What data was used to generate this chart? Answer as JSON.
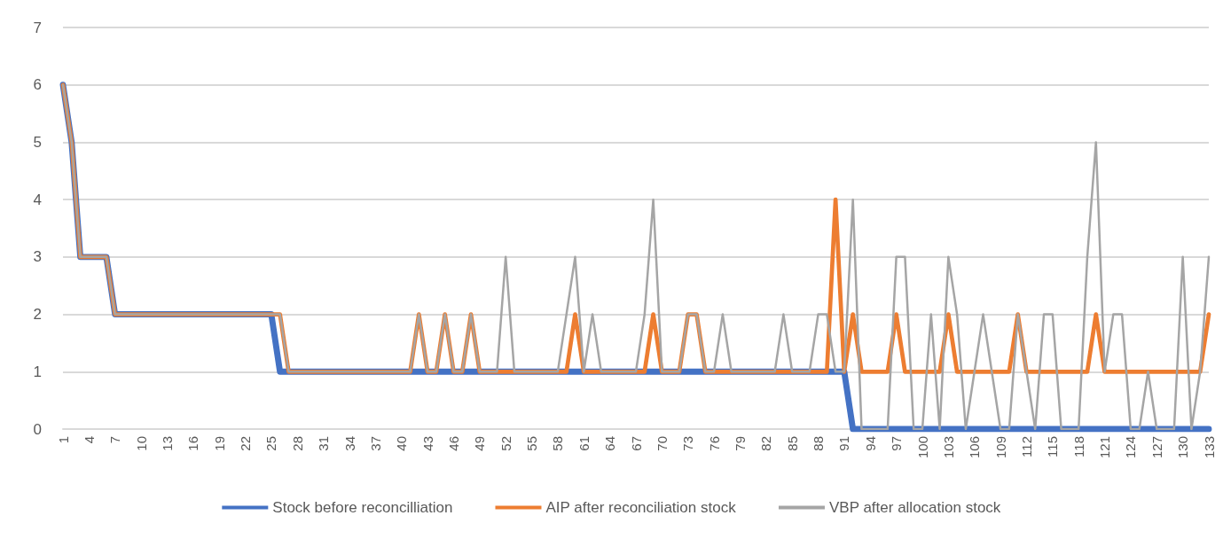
{
  "chart_data": {
    "type": "line",
    "categories": [
      "1",
      null,
      null,
      "4",
      null,
      null,
      "7",
      null,
      null,
      "10",
      null,
      null,
      "13",
      null,
      null,
      "16",
      null,
      null,
      "19",
      null,
      null,
      "22",
      null,
      null,
      "25",
      null,
      null,
      "28",
      null,
      null,
      "31",
      null,
      null,
      "34",
      null,
      null,
      "37",
      null,
      null,
      "40",
      null,
      null,
      "43",
      null,
      null,
      "46",
      null,
      null,
      "49",
      null,
      null,
      "52",
      null,
      null,
      "55",
      null,
      null,
      "58",
      null,
      null,
      "61",
      null,
      null,
      "64",
      null,
      null,
      "67",
      null,
      null,
      "70",
      null,
      null,
      "73",
      null,
      null,
      "76",
      null,
      null,
      "79",
      null,
      null,
      "82",
      null,
      null,
      "85",
      null,
      null,
      "88",
      null,
      null,
      "91",
      null,
      null,
      "94",
      null,
      null,
      "97",
      null,
      null,
      "100",
      null,
      null,
      "103",
      null,
      null,
      "106",
      null,
      null,
      "109",
      null,
      null,
      "112",
      null,
      null,
      "115",
      null,
      null,
      "118",
      null,
      null,
      "121",
      null,
      null,
      "124",
      null,
      null,
      "127",
      null,
      null,
      "130",
      null,
      null,
      "133"
    ],
    "series": [
      {
        "name": "Stock before reconcilliation",
        "color": "#4472c4",
        "values": [
          6,
          5,
          3,
          3,
          3,
          3,
          2,
          2,
          2,
          2,
          2,
          2,
          2,
          2,
          2,
          2,
          2,
          2,
          2,
          2,
          2,
          2,
          2,
          2,
          2,
          1,
          1,
          1,
          1,
          1,
          1,
          1,
          1,
          1,
          1,
          1,
          1,
          1,
          1,
          1,
          1,
          1,
          1,
          1,
          1,
          1,
          1,
          1,
          1,
          1,
          1,
          1,
          1,
          1,
          1,
          1,
          1,
          1,
          1,
          1,
          1,
          1,
          1,
          1,
          1,
          1,
          1,
          1,
          1,
          1,
          1,
          1,
          1,
          1,
          1,
          1,
          1,
          1,
          1,
          1,
          1,
          1,
          1,
          1,
          1,
          1,
          1,
          1,
          1,
          1,
          1,
          0,
          0,
          0,
          0,
          0,
          0,
          0,
          0,
          0,
          0,
          0,
          0,
          0,
          0,
          0,
          0,
          0,
          0,
          0,
          0,
          0,
          0,
          0,
          0,
          0,
          0,
          0,
          0,
          0,
          0,
          0,
          0,
          0,
          0,
          0,
          0,
          0,
          0,
          0,
          0,
          0,
          0
        ]
      },
      {
        "name": "AIP after reconciliation stock",
        "color": "#ed7d31",
        "values": [
          6,
          5,
          3,
          3,
          3,
          3,
          2,
          2,
          2,
          2,
          2,
          2,
          2,
          2,
          2,
          2,
          2,
          2,
          2,
          2,
          2,
          2,
          2,
          2,
          2,
          2,
          1,
          1,
          1,
          1,
          1,
          1,
          1,
          1,
          1,
          1,
          1,
          1,
          1,
          1,
          1,
          2,
          1,
          1,
          2,
          1,
          1,
          2,
          1,
          1,
          1,
          1,
          1,
          1,
          1,
          1,
          1,
          1,
          1,
          2,
          1,
          1,
          1,
          1,
          1,
          1,
          1,
          1,
          2,
          1,
          1,
          1,
          2,
          2,
          1,
          1,
          1,
          1,
          1,
          1,
          1,
          1,
          1,
          1,
          1,
          1,
          1,
          1,
          1,
          4,
          1,
          2,
          1,
          1,
          1,
          1,
          2,
          1,
          1,
          1,
          1,
          1,
          2,
          1,
          1,
          1,
          1,
          1,
          1,
          1,
          2,
          1,
          1,
          1,
          1,
          1,
          1,
          1,
          1,
          2,
          1,
          1,
          1,
          1,
          1,
          1,
          1,
          1,
          1,
          1,
          1,
          1,
          2
        ]
      },
      {
        "name": "VBP after allocation stock",
        "color": "#a5a5a5",
        "values": [
          6,
          5,
          3,
          3,
          3,
          3,
          2,
          2,
          2,
          2,
          2,
          2,
          2,
          2,
          2,
          2,
          2,
          2,
          2,
          2,
          2,
          2,
          2,
          2,
          2,
          2,
          1,
          1,
          1,
          1,
          1,
          1,
          1,
          1,
          1,
          1,
          1,
          1,
          1,
          1,
          1,
          2,
          1,
          1,
          2,
          1,
          1,
          2,
          1,
          1,
          1,
          3,
          1,
          1,
          1,
          1,
          1,
          1,
          2,
          3,
          1,
          2,
          1,
          1,
          1,
          1,
          1,
          2,
          4,
          1,
          1,
          1,
          2,
          2,
          1,
          1,
          2,
          1,
          1,
          1,
          1,
          1,
          1,
          2,
          1,
          1,
          1,
          2,
          2,
          1,
          1,
          4,
          0,
          0,
          0,
          0,
          3,
          3,
          0,
          0,
          2,
          0,
          3,
          2,
          0,
          1,
          2,
          1,
          0,
          0,
          2,
          1,
          0,
          2,
          2,
          0,
          0,
          0,
          3,
          5,
          1,
          2,
          2,
          0,
          0,
          1,
          0,
          0,
          0,
          3,
          0,
          1,
          3
        ]
      }
    ],
    "ylim": [
      0,
      7
    ],
    "yticks": [
      0,
      1,
      2,
      3,
      4,
      5,
      6,
      7
    ],
    "grid": "y",
    "legend": "bottom",
    "marker": "none",
    "line_style": "solid"
  }
}
